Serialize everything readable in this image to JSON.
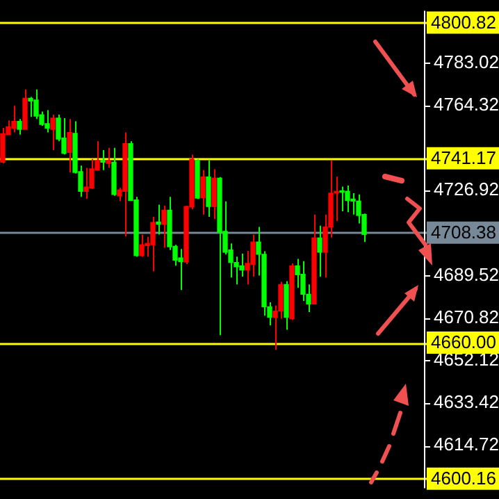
{
  "chart_data": {
    "type": "candlestick",
    "categories": [
      null,
      null,
      null,
      null,
      null,
      null,
      null,
      null,
      null,
      null,
      null,
      null,
      null,
      null,
      null,
      null,
      null,
      null,
      null,
      null,
      null,
      null,
      null,
      null,
      null,
      null,
      null,
      null,
      null,
      null,
      null,
      null,
      null,
      null,
      null,
      null,
      null,
      null,
      null,
      null,
      null,
      null,
      null,
      null,
      null,
      null,
      null,
      null,
      null,
      null,
      null,
      null,
      null,
      null,
      null,
      null,
      null,
      null,
      null,
      null,
      null,
      null,
      null,
      null,
      null,
      null
    ],
    "ohlc": [
      [
        4751.9,
        4754.5,
        4738.9,
        4739.4
      ],
      [
        4755.0,
        4757.8,
        4751.5,
        4751.5
      ],
      [
        4757.4,
        4764.2,
        4752.5,
        4754.4
      ],
      [
        4753.9,
        4758.4,
        4751.5,
        4757.4
      ],
      [
        4767.5,
        4771.4,
        4753.9,
        4753.9
      ],
      [
        4766.3,
        4768.1,
        4759.3,
        4767.5
      ],
      [
        4759.7,
        4771.4,
        4758.4,
        4766.8
      ],
      [
        4756.0,
        4761.7,
        4755.4,
        4760.3
      ],
      [
        4754.4,
        4762.3,
        4752.5,
        4756.4
      ],
      [
        4758.8,
        4760.3,
        4744.7,
        4753.9
      ],
      [
        4749.6,
        4760.3,
        4748.6,
        4758.8
      ],
      [
        4743.3,
        4758.8,
        4742.8,
        4750.0
      ],
      [
        4752.5,
        4758.4,
        4734.9,
        4743.7
      ],
      [
        4734.9,
        4757.4,
        4734.4,
        4752.1
      ],
      [
        4726.6,
        4737.9,
        4724.2,
        4735.3
      ],
      [
        4728.5,
        4736.9,
        4723.3,
        4726.6
      ],
      [
        4736.5,
        4740.8,
        4727.7,
        4728.1
      ],
      [
        4740.2,
        4748.6,
        4735.9,
        4735.9
      ],
      [
        4739.4,
        4744.7,
        4735.9,
        4740.2
      ],
      [
        4740.2,
        4745.7,
        4736.9,
        4738.9
      ],
      [
        4725.2,
        4745.7,
        4724.6,
        4739.4
      ],
      [
        4727.2,
        4728.1,
        4722.3,
        4724.6
      ],
      [
        4747.6,
        4752.5,
        4706.7,
        4726.6
      ],
      [
        4722.6,
        4748.6,
        4722.3,
        4747.6
      ],
      [
        4698.3,
        4724.2,
        4697.9,
        4722.8
      ],
      [
        4703.1,
        4707.6,
        4697.9,
        4698.3
      ],
      [
        4703.7,
        4706.6,
        4697.9,
        4702.7
      ],
      [
        4712.9,
        4715.4,
        4691.4,
        4703.1
      ],
      [
        4712.1,
        4720.7,
        4707.6,
        4713.1
      ],
      [
        4718.3,
        4720.3,
        4701.8,
        4712.1
      ],
      [
        4702.2,
        4724.2,
        4700.8,
        4718.3
      ],
      [
        4696.3,
        4703.1,
        4693.9,
        4702.4
      ],
      [
        4695.7,
        4701.2,
        4683.2,
        4697.3
      ],
      [
        4719.9,
        4720.3,
        4694.6,
        4695.5
      ],
      [
        4740.8,
        4742.7,
        4718.7,
        4719.7
      ],
      [
        4723.6,
        4740.8,
        4723.2,
        4740.2
      ],
      [
        4732.9,
        4735.9,
        4716.4,
        4723.8
      ],
      [
        4719.9,
        4740.2,
        4715.4,
        4732.9
      ],
      [
        4732.4,
        4736.3,
        4714.4,
        4719.9
      ],
      [
        4708.6,
        4732.9,
        4663.3,
        4732.4
      ],
      [
        4699.8,
        4722.2,
        4698.8,
        4709.0
      ],
      [
        4695.3,
        4703.7,
        4688.7,
        4700.8
      ],
      [
        4693.4,
        4697.9,
        4685.6,
        4695.3
      ],
      [
        4692.0,
        4699.2,
        4689.1,
        4693.8
      ],
      [
        4694.9,
        4700.4,
        4685.6,
        4692.0
      ],
      [
        4704.3,
        4707.6,
        4689.1,
        4694.5
      ],
      [
        4698.9,
        4710.9,
        4689.5,
        4704.3
      ],
      [
        4675.8,
        4700.2,
        4671.9,
        4698.9
      ],
      [
        4671.2,
        4677.8,
        4667.6,
        4675.8
      ],
      [
        4673.9,
        4676.4,
        4656.9,
        4671.2
      ],
      [
        4685.6,
        4686.8,
        4670.6,
        4673.9
      ],
      [
        4671.2,
        4687.1,
        4665.7,
        4685.6
      ],
      [
        4693.8,
        4694.9,
        4670.0,
        4670.6
      ],
      [
        4689.9,
        4696.9,
        4684.2,
        4693.8
      ],
      [
        4681.3,
        4695.9,
        4678.4,
        4690.1
      ],
      [
        4677.0,
        4685.6,
        4673.5,
        4681.3
      ],
      [
        4706.1,
        4716.4,
        4677.0,
        4677.0
      ],
      [
        4699.8,
        4711.5,
        4689.1,
        4706.1
      ],
      [
        4710.9,
        4716.4,
        4688.7,
        4699.8
      ],
      [
        4725.8,
        4740.2,
        4706.3,
        4710.9
      ],
      [
        4726.6,
        4733.0,
        4713.5,
        4725.8
      ],
      [
        4726.2,
        4728.7,
        4717.8,
        4726.6
      ],
      [
        4722.6,
        4729.1,
        4717.4,
        4726.6
      ],
      [
        4722.3,
        4725.8,
        4716.4,
        4723.2
      ],
      [
        4716.0,
        4725.2,
        4712.5,
        4722.3
      ],
      [
        4707.6,
        4716.8,
        4704.3,
        4716.4
      ]
    ],
    "colors": [
      "#ff0000",
      "#ff0000",
      "#ff0000",
      "#00ff00",
      "#ff0000",
      "#00ff00",
      "#00ff00",
      "#00ff00",
      "#00ff00",
      "#ff0000",
      "#00ff00",
      "#00ff00",
      "#ff0000",
      "#00ff00",
      "#00ff00",
      "#ff0000",
      "#ff0000",
      "#ff0000",
      "#00ff00",
      "#ff0000",
      "#00ff00",
      "#ff0000",
      "#ff0000",
      "#00ff00",
      "#00ff00",
      "#ff0000",
      "#ff0000",
      "#ff0000",
      "#00ff00",
      "#ff0000",
      "#00ff00",
      "#00ff00",
      "#00ff00",
      "#ff0000",
      "#ff0000",
      "#00ff00",
      "#ff0000",
      "#00ff00",
      "#ff0000",
      "#00ff00",
      "#00ff00",
      "#00ff00",
      "#00ff00",
      "#00ff00",
      "#ff0000",
      "#ff0000",
      "#00ff00",
      "#00ff00",
      "#00ff00",
      "#ff0000",
      "#ff0000",
      "#00ff00",
      "#ff0000",
      "#00ff00",
      "#00ff00",
      "#00ff00",
      "#ff0000",
      "#00ff00",
      "#ff0000",
      "#ff0000",
      "#ff0000",
      "#00ff00",
      "#00ff00",
      "#00ff00",
      "#00ff00",
      "#00ff00"
    ],
    "ylim": [
      4596,
      4806
    ],
    "yticks": [
      4614.72,
      4633.42,
      4652.12,
      4670.82,
      4689.52,
      4726.92,
      4764.32,
      4783.02
    ],
    "tick_labels": "y",
    "ref_lines": [
      {
        "axis": "y",
        "value": 4800.82,
        "label": "4800.82",
        "color": "#ffff00"
      },
      {
        "axis": "y",
        "value": 4741.17,
        "label": "4741.17",
        "color": "#ffff00"
      },
      {
        "axis": "y",
        "value": 4708.38,
        "label": "4708.38",
        "color": "#778899"
      },
      {
        "axis": "y",
        "value": 4660.0,
        "label": "4660.00",
        "color": "#ffff00"
      },
      {
        "axis": "y",
        "value": 4600.16,
        "label": "4600.16",
        "color": "#ffff00"
      }
    ]
  }
}
